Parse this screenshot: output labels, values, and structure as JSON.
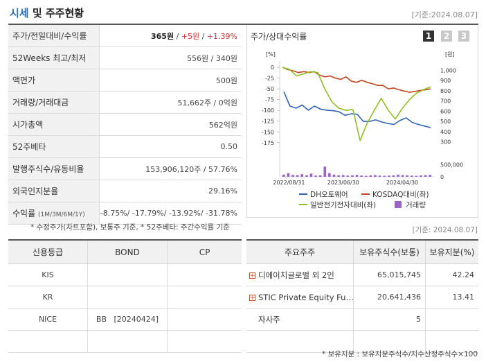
{
  "header": {
    "title_accent": "시세",
    "title_rest": " 및 주주현황",
    "date": "[기준:2024.08.07]"
  },
  "price_rows": [
    {
      "label": "주가/전일대비/수익률",
      "price": "365원",
      "change": "+5원",
      "rate": "+1.39%"
    },
    {
      "label": "52Weeks 최고/최저",
      "value": "556원 / 340원"
    },
    {
      "label": "액면가",
      "value": "500원"
    },
    {
      "label": "거래량/거래대금",
      "value": "51,662주 / 0억원"
    },
    {
      "label": "시가총액",
      "value": "562억원"
    },
    {
      "label": "52주베타",
      "value": "0.50"
    },
    {
      "label": "발행주식수/유동비율",
      "value": "153,906,120주 / 57.76%"
    },
    {
      "label": "외국인지분율",
      "value": "29.16%"
    },
    {
      "label": "수익률",
      "label_sub": "(1M/3M/6M/1Y)",
      "value": "-8.75%/ -17.79%/ -13.92%/ -31.78%"
    }
  ],
  "footnote_left": "* 수정주가(차트포함), 보통주 기준, * 52주베타: 주간수익률 기준",
  "date_mid": "[기준: 2024.08.07]",
  "chart_panel": {
    "title": "주가/상대수익률",
    "pages": [
      "1",
      "2",
      "3"
    ]
  },
  "chart_data": {
    "type": "line",
    "x_tick_labels": [
      "2022/08/31",
      "2023/06/30",
      "2024/04/30"
    ],
    "y_left": {
      "unit": "[%]",
      "ticks": [
        "0",
        "-25",
        "-50",
        "-75",
        "-100",
        "-125",
        "-150",
        "-175"
      ],
      "range": [
        -185,
        5
      ]
    },
    "y_right": {
      "unit": "[원]",
      "ticks": [
        "1,000",
        "900",
        "800",
        "700",
        "600",
        "500",
        "400",
        "300"
      ],
      "range": [
        250,
        1050
      ]
    },
    "y_volume": {
      "ticks": [
        "500,000",
        "0"
      ],
      "range": [
        0,
        600000
      ]
    },
    "legend": [
      "DH오토웨어",
      "KOSDAQ대비(좌)",
      "일반전기전자대비(좌)",
      "거래량"
    ],
    "colors": {
      "price": "#2f64b8",
      "kosdaq": "#c8401b",
      "sector": "#8cc21e",
      "volume": "#9a63c6"
    },
    "series": [
      {
        "name": "DH오토웨어",
        "axis": "right",
        "values": [
          790,
          650,
          630,
          660,
          610,
          650,
          620,
          610,
          605,
          595,
          560,
          575,
          570,
          500,
          500,
          515,
          495,
          480,
          470,
          510,
          535,
          490,
          470,
          455,
          440
        ]
      },
      {
        "name": "KOSDAQ대비(좌)",
        "axis": "left",
        "values": [
          0,
          -5,
          -8,
          -12,
          -10,
          -12,
          -10,
          -18,
          -22,
          -20,
          -25,
          -28,
          -22,
          -32,
          -35,
          -30,
          -35,
          -38,
          -42,
          -42,
          -50,
          -48,
          -52,
          -55,
          -58,
          -56,
          -54,
          -52,
          -50
        ]
      },
      {
        "name": "일반전기전자대비(좌)",
        "axis": "left",
        "values": [
          0,
          -5,
          -20,
          -15,
          -10,
          -12,
          -50,
          -80,
          -95,
          -100,
          -98,
          -170,
          -130,
          -100,
          -72,
          -100,
          -120,
          -95,
          -75,
          -60,
          -52,
          -45
        ]
      },
      {
        "name": "거래량",
        "axis": "volume",
        "values": [
          90000,
          150000,
          80000,
          70000,
          110000,
          60000,
          130000,
          50000,
          60000,
          420000,
          150000,
          90000,
          60000,
          70000,
          50000,
          60000,
          80000,
          50000,
          40000,
          60000,
          70000,
          50000,
          40000,
          50000,
          60000,
          90000,
          70000,
          60000,
          50000,
          40000,
          60000,
          70000,
          80000
        ]
      }
    ]
  },
  "credit": {
    "headers": [
      "신용등급",
      "BOND",
      "CP"
    ],
    "rows": [
      [
        "KIS",
        "",
        ""
      ],
      [
        "KR",
        "",
        ""
      ],
      [
        "NICE",
        "BB   [20240424]",
        ""
      ],
      [
        "",
        "",
        ""
      ]
    ]
  },
  "holders": {
    "headers": [
      "주요주주",
      "보유주식수(보통)",
      "보유지분(%)"
    ],
    "rows": [
      {
        "name": "디에이치글로벌 외 2인",
        "shares": "65,015,745",
        "pct": "42.24",
        "expandable": true
      },
      {
        "name": "STIC Private Equity Fu…",
        "shares": "20,641,436",
        "pct": "13.41",
        "expandable": true
      },
      {
        "name": "자사주",
        "shares": "5",
        "pct": "",
        "expandable": false
      },
      {
        "name": "",
        "shares": "",
        "pct": "",
        "expandable": false
      }
    ],
    "expand_glyph": "+"
  },
  "footnote_right": "* 보유지분 : 보유지분주식수/지수산정주식수×100"
}
